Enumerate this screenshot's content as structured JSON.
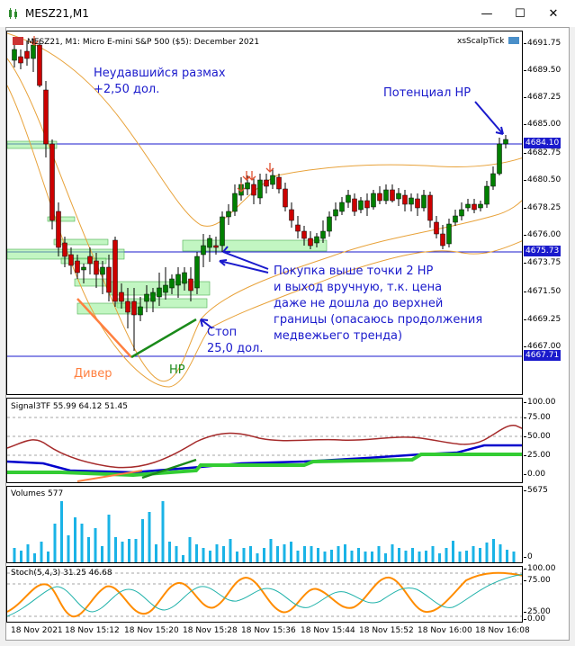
{
  "window": {
    "title": "MESZ21,M1",
    "minimize_glyph": "—",
    "maximize_glyph": "☐",
    "close_glyph": "✕"
  },
  "main_chart": {
    "header": "MESZ21, M1:  Micro E-mini S&P 500 ($5): December 2021",
    "expert": "xsScalpTick",
    "price_labels": [
      "4691.75",
      "4689.50",
      "4687.25",
      "4685.00",
      "4682.75",
      "4680.50",
      "4678.25",
      "4676.00",
      "4673.75",
      "4671.50",
      "4669.25",
      "4667.00"
    ],
    "tag_top": "4684.10",
    "tag_mid": "4675.73",
    "tag_low": "4667.71",
    "annotations": {
      "failed_swing_1": "Неудавшийся размах",
      "failed_swing_2": "+2,50 дол.",
      "potential_hp": "Потенциал HP",
      "buy_1": "Покупка выше точки 2 HP",
      "buy_2": "и выход вручную, т.к. цена",
      "buy_3": "даже не дошла до верхней",
      "buy_4": "границы (опасаюсь продолжения",
      "buy_5": "медвежьего тренда)",
      "stop_1": "Стоп",
      "stop_2": "25,0 дол.",
      "diver": "Дивер",
      "hp": "HP"
    },
    "colors": {
      "bull": "#008000",
      "bear": "#cc0000",
      "band": "#e8a23a",
      "zone": "#90ee90",
      "annot_blue": "#1a1acc",
      "hp_green": "#1a8a1a",
      "diver_orange": "#ff8040"
    }
  },
  "signal_pane": {
    "label": "Signal3TF 55.99 64.12 51.45",
    "levels": [
      "100.00",
      "75.00",
      "50.00",
      "25.00",
      "0.00"
    ]
  },
  "volume_pane": {
    "label": "Volumes 577",
    "levels": [
      "5675",
      "0"
    ]
  },
  "stoch_pane": {
    "label": "Stoch(5,4,3) 31.25 46.68",
    "levels": [
      "100.00",
      "75.00",
      "25.00",
      "0.00"
    ]
  },
  "time_axis": [
    "18 Nov 2021",
    "18 Nov 15:12",
    "18 Nov 15:20",
    "18 Nov 15:28",
    "18 Nov 15:36",
    "18 Nov 15:44",
    "18 Nov 15:52",
    "18 Nov 16:00",
    "18 Nov 16:08"
  ]
}
